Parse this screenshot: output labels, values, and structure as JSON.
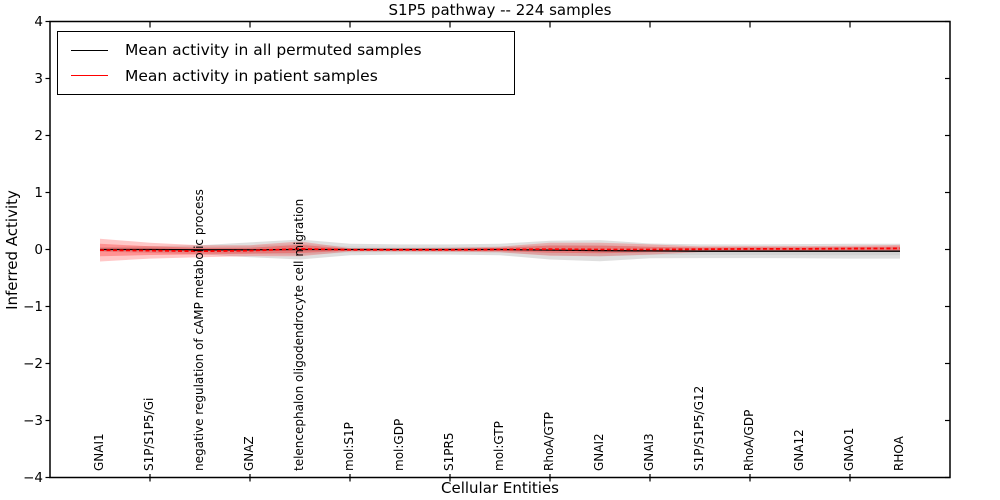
{
  "figure": {
    "title": "S1P5 pathway -- 224 samples",
    "xlabel": "Cellular Entities",
    "ylabel": "Inferred Activity"
  },
  "legend": {
    "items": [
      {
        "label": "Mean activity in all permuted samples",
        "color": "#000000"
      },
      {
        "label": "Mean activity in patient samples",
        "color": "#ff0000"
      }
    ]
  },
  "chart_data": {
    "type": "line",
    "title": "S1P5 pathway -- 224 samples",
    "xlabel": "Cellular Entities",
    "ylabel": "Inferred Activity",
    "ylim": [
      -4,
      4
    ],
    "yticks": [
      -4,
      -3,
      -2,
      -1,
      0,
      1,
      2,
      3,
      4
    ],
    "grid": false,
    "legend_position": "upper left",
    "categories": [
      "GNAI1",
      "S1P/S1P5/Gi",
      "negative regulation of cAMP metabolic process",
      "GNAZ",
      "telencephalon oligodendrocyte cell migration",
      "mol:S1P",
      "mol:GDP",
      "S1PR5",
      "mol:GTP",
      "RhoA/GTP",
      "GNAI2",
      "GNAI3",
      "S1P/S1P5/G12",
      "RhoA/GDP",
      "GNA12",
      "GNAO1",
      "RHOA"
    ],
    "series": [
      {
        "name": "Mean activity in all permuted samples",
        "color": "#000000",
        "line_style": "solid",
        "band_color": "#808080",
        "values": [
          0.0,
          0.0,
          -0.005,
          -0.005,
          0.0,
          0.0,
          0.0,
          0.0,
          0.0,
          -0.01,
          -0.02,
          -0.025,
          -0.03,
          -0.03,
          -0.03,
          -0.03,
          -0.03
        ],
        "std_band": [
          0.04,
          0.06,
          0.08,
          0.13,
          0.175,
          0.1,
          0.09,
          0.09,
          0.1,
          0.165,
          0.185,
          0.13,
          0.12,
          0.12,
          0.125,
          0.13,
          0.13
        ]
      },
      {
        "name": "Mean activity in patient samples",
        "color": "#ff0000",
        "line_style": "dashed",
        "band_color": "#ff0000",
        "values": [
          -0.01,
          -0.02,
          -0.03,
          -0.02,
          0.01,
          -0.005,
          -0.005,
          -0.005,
          0.0,
          0.005,
          0.0,
          0.0,
          0.005,
          0.01,
          0.01,
          0.015,
          0.02
        ],
        "std_band": [
          0.2,
          0.14,
          0.105,
          0.095,
          0.13,
          0.03,
          0.03,
          0.035,
          0.05,
          0.115,
          0.12,
          0.09,
          0.05,
          0.05,
          0.05,
          0.05,
          0.06
        ]
      }
    ]
  }
}
